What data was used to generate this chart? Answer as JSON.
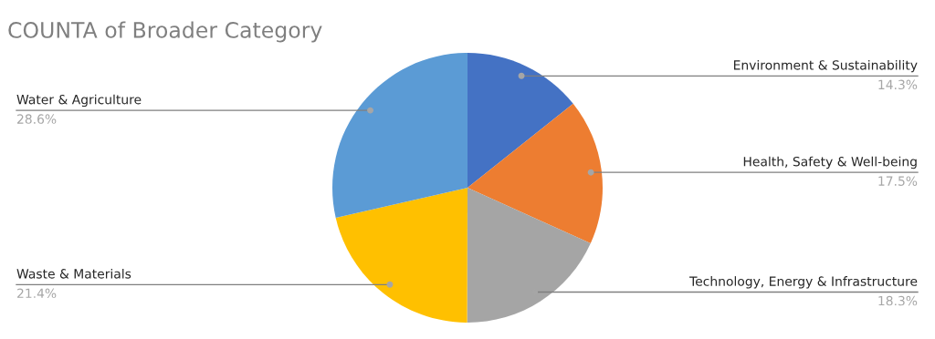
{
  "chart_data": {
    "type": "pie",
    "title": "COUNTA of Broader Category",
    "categories": [
      "Environment & Sustainability",
      "Health, Safety & Well-being",
      "Technology, Energy & Infrastructure",
      "Waste & Materials",
      "Water & Agriculture"
    ],
    "values": [
      14.3,
      17.5,
      18.3,
      21.4,
      28.6
    ],
    "value_labels": [
      "14.3%",
      "17.5%",
      "18.3%",
      "21.4%",
      "28.6%"
    ],
    "colors": [
      "#4472c4",
      "#ed7d31",
      "#a5a5a5",
      "#ffc000",
      "#5b9bd5"
    ],
    "legend": false
  }
}
